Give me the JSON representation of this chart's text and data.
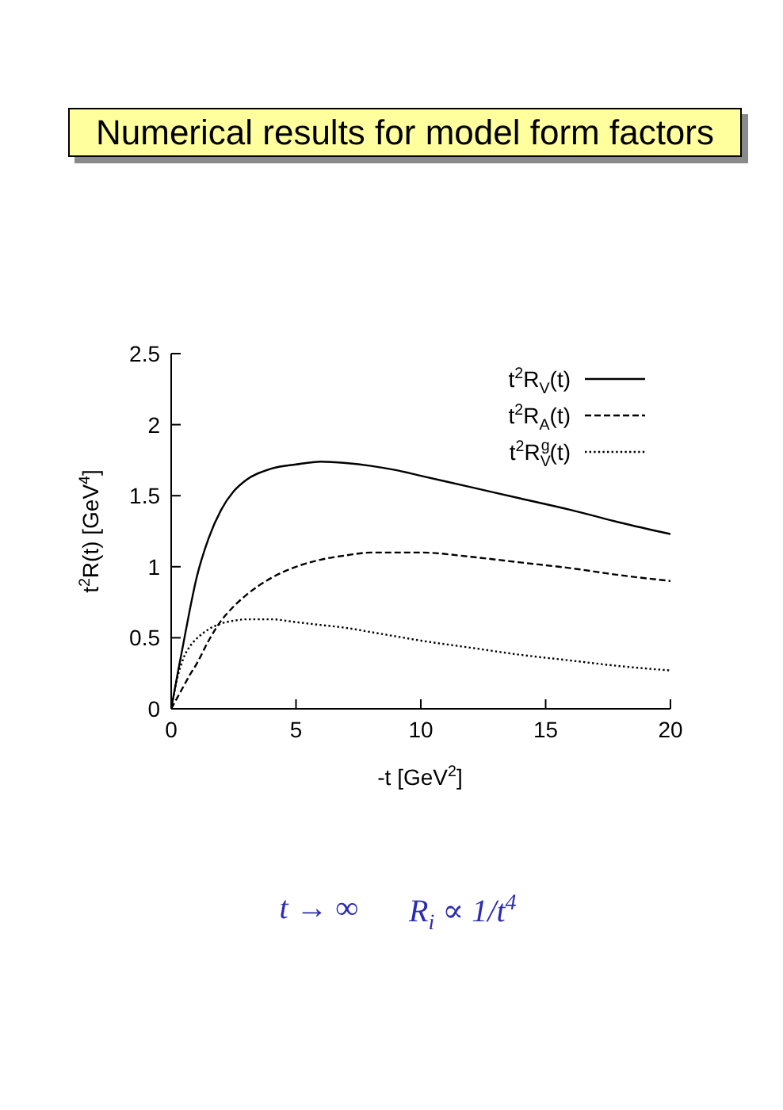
{
  "chart_data": {
    "type": "line",
    "title": "Numerical results for model form factors",
    "xlabel": "-t [GeV$^{2}$]",
    "ylabel": "t$^{2}$R(t) [GeV$^{4}$]",
    "annotations": [
      "t → ∞",
      "R$_{i}$ ∝ 1/t$^{4}$"
    ],
    "x": [
      0,
      0.25,
      0.5,
      0.75,
      1,
      1.5,
      2,
      2.5,
      3,
      4,
      5,
      6,
      7,
      8,
      9,
      10,
      12,
      14,
      16,
      18,
      20
    ],
    "series": [
      {
        "name": "t$^{2}$R$_{V}$(t)",
        "color": "#000000",
        "line_style": "solid",
        "values": [
          0,
          0.24,
          0.47,
          0.7,
          0.91,
          1.2,
          1.4,
          1.53,
          1.61,
          1.69,
          1.72,
          1.74,
          1.73,
          1.71,
          1.68,
          1.64,
          1.56,
          1.48,
          1.4,
          1.31,
          1.23
        ]
      },
      {
        "name": "t$^{2}$R$_{A}$(t)",
        "color": "#000000",
        "line_style": "dashed",
        "values": [
          0,
          0.08,
          0.16,
          0.24,
          0.31,
          0.48,
          0.62,
          0.72,
          0.8,
          0.92,
          1.0,
          1.05,
          1.08,
          1.1,
          1.1,
          1.1,
          1.07,
          1.03,
          0.99,
          0.94,
          0.9
        ]
      },
      {
        "name": "t$^{2}$R$_{V}$$^{g}$(t)",
        "color": "#000000",
        "line_style": "dotted",
        "values": [
          0,
          0.22,
          0.36,
          0.44,
          0.49,
          0.56,
          0.6,
          0.62,
          0.63,
          0.63,
          0.61,
          0.59,
          0.57,
          0.54,
          0.51,
          0.48,
          0.43,
          0.38,
          0.34,
          0.3,
          0.27
        ]
      }
    ],
    "xlim": [
      0,
      20
    ],
    "ylim": [
      0,
      2.5
    ],
    "xticks": [
      0,
      5,
      10,
      15,
      20
    ],
    "yticks": [
      0,
      0.5,
      1,
      1.5,
      2,
      2.5
    ],
    "legend": "top right"
  }
}
